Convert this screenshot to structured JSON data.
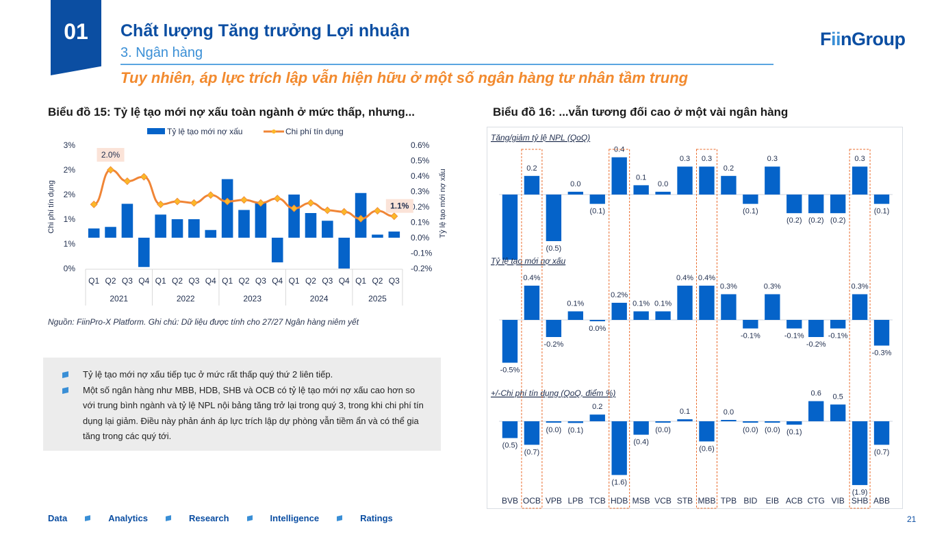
{
  "header": {
    "section_number": "01",
    "title": "Chất lượng Tăng trưởng Lợi nhuận",
    "subtitle": "3. Ngân hàng",
    "headline": "Tuy nhiên, áp lực trích lập vẫn hiện hữu ở một số ngân hàng tư nhân tầm trung",
    "logo_prefix": "F",
    "logo_ii": "ii",
    "logo_suffix": "nGroup"
  },
  "colors": {
    "brand_blue": "#0b4ea2",
    "bar_blue": "#0563c9",
    "line_orange": "#f08536",
    "marker_yellow": "#fbb829",
    "highlight_box": "#ea6a2a",
    "accent_orange": "#f28a2e"
  },
  "source_note": "Nguồn: FiinPro-X Platform. Ghi chú: Dữ liệu được tính cho 27/27 Ngân hàng niêm yết",
  "notes": [
    "Tỷ lệ tạo mới nợ xấu tiếp tục ở mức rất thấp quý thứ 2 liên tiếp.",
    "Một số ngân hàng như MBB, HDB, SHB và OCB có tỷ lệ tạo mới nợ xấu cao hơn so với trung bình ngành và tỷ lệ NPL nội bảng tăng trở lại trong quý 3, trong khi chi phí tín dụng lại giảm. Điều này phản ánh áp lực trích lập dự phòng vẫn tiềm ẩn và có thể gia tăng trong các quý tới."
  ],
  "footer": {
    "items": [
      "Data",
      "Analytics",
      "Research",
      "Intelligence",
      "Ratings"
    ],
    "page_number": "21"
  },
  "chart_data": [
    {
      "type": "bar+line",
      "title": "Biểu đồ 15: Tỷ lệ tạo mới nợ xấu toàn ngành ở mức thấp, nhưng...",
      "legend": [
        "Tỷ lệ tạo mới nợ xấu",
        "Chi phí tín dụng"
      ],
      "legend_position": "top",
      "ylabel_left": "Chi phí tín dụng",
      "ylabel_right": "Tỷ lệ tạo mới nợ xấu",
      "categories": [
        "Q1",
        "Q2",
        "Q3",
        "Q4",
        "Q1",
        "Q2",
        "Q3",
        "Q4",
        "Q1",
        "Q2",
        "Q3",
        "Q4",
        "Q1",
        "Q2",
        "Q3",
        "Q4",
        "Q1",
        "Q2",
        "Q3"
      ],
      "groups": [
        {
          "label": "2021",
          "count": 4
        },
        {
          "label": "2022",
          "count": 4
        },
        {
          "label": "2023",
          "count": 4
        },
        {
          "label": "2024",
          "count": 4
        },
        {
          "label": "2025",
          "count": 3
        }
      ],
      "left_ticks": [
        "0%",
        "1%",
        "1%",
        "2%",
        "2%",
        "3%"
      ],
      "left_range": [
        0,
        2.5
      ],
      "right_ticks": [
        "-0.2%",
        "-0.1%",
        "0.0%",
        "0.1%",
        "0.2%",
        "0.3%",
        "0.4%",
        "0.5%",
        "0.6%"
      ],
      "right_range": [
        -0.2,
        0.6
      ],
      "series": [
        {
          "name": "Tỷ lệ tạo mới nợ xấu",
          "axis": "right",
          "kind": "bar",
          "values": [
            0.06,
            0.07,
            0.22,
            -0.19,
            0.15,
            0.12,
            0.12,
            0.05,
            0.38,
            0.18,
            0.23,
            -0.16,
            0.28,
            0.16,
            0.11,
            -0.2,
            0.29,
            0.02,
            0.04
          ]
        },
        {
          "name": "Chi phí tín dụng",
          "axis": "left",
          "kind": "line",
          "values": [
            1.3,
            2.0,
            1.77,
            1.86,
            1.3,
            1.36,
            1.33,
            1.49,
            1.36,
            1.39,
            1.33,
            1.42,
            1.22,
            1.33,
            1.18,
            1.15,
            1.01,
            1.17,
            1.06
          ]
        }
      ],
      "annotations": [
        {
          "index": 1,
          "text": "2.0%"
        },
        {
          "index": 18,
          "text": "1.1%"
        }
      ]
    },
    {
      "type": "bar",
      "title": "Biểu đồ 16: ...vẫn tương đối cao ở một vài ngân hàng",
      "categories": [
        "BVB",
        "OCB",
        "VPB",
        "LPB",
        "TCB",
        "HDB",
        "MSB",
        "VCB",
        "STB",
        "MBB",
        "TPB",
        "BID",
        "EIB",
        "ACB",
        "CTG",
        "VIB",
        "SHB",
        "ABB"
      ],
      "highlighted": [
        "OCB",
        "HDB",
        "MBB",
        "SHB"
      ],
      "panels": [
        {
          "title": "Tăng/giảm tỷ lệ NPL (QoQ)",
          "values": [
            -0.7,
            0.2,
            -0.5,
            0.03,
            -0.1,
            0.4,
            0.1,
            0.03,
            0.3,
            0.3,
            0.2,
            -0.1,
            0.3,
            -0.2,
            -0.2,
            -0.2,
            0.3,
            -0.1
          ],
          "labels": [
            "",
            "0.2",
            "(0.5)",
            "0.0",
            "(0.1)",
            "0.4",
            "0.1",
            "0.0",
            "0.3",
            "0.3",
            "0.2",
            "(0.1)",
            "0.3",
            "(0.2)",
            "(0.2)",
            "(0.2)",
            "0.3",
            "(0.1)"
          ]
        },
        {
          "title": "Tỷ lệ tạo mới nợ xấu",
          "values": [
            -0.5,
            0.4,
            -0.2,
            0.1,
            -0.005,
            0.2,
            0.1,
            0.1,
            0.4,
            0.4,
            0.3,
            -0.1,
            0.3,
            -0.1,
            -0.2,
            -0.1,
            0.3,
            -0.3
          ],
          "labels": [
            "-0.5%",
            "0.4%",
            "-0.2%",
            "0.1%",
            "0.0%",
            "0.2%",
            "0.1%",
            "0.1%",
            "0.4%",
            "0.4%",
            "0.3%",
            "-0.1%",
            "0.3%",
            "-0.1%",
            "-0.2%",
            "-0.1%",
            "0.3%",
            "-0.3%"
          ]
        },
        {
          "title": "+/-Chi phí tín dụng (QoQ, điểm %)",
          "values": [
            -0.5,
            -0.7,
            -0.02,
            -0.05,
            0.2,
            -1.6,
            -0.4,
            -0.02,
            0.06,
            -0.6,
            0.04,
            -0.02,
            -0.03,
            -0.1,
            0.6,
            0.5,
            -1.9,
            -0.7
          ],
          "labels": [
            "(0.5)",
            "(0.7)",
            "(0.0)",
            "(0.1)",
            "0.2",
            "(1.6)",
            "(0.4)",
            "(0.0)",
            "0.1",
            "(0.6)",
            "0.0",
            "(0.0)",
            "(0.0)",
            "(0.1)",
            "0.6",
            "0.5",
            "(1.9)",
            "(0.7)"
          ]
        }
      ]
    }
  ]
}
